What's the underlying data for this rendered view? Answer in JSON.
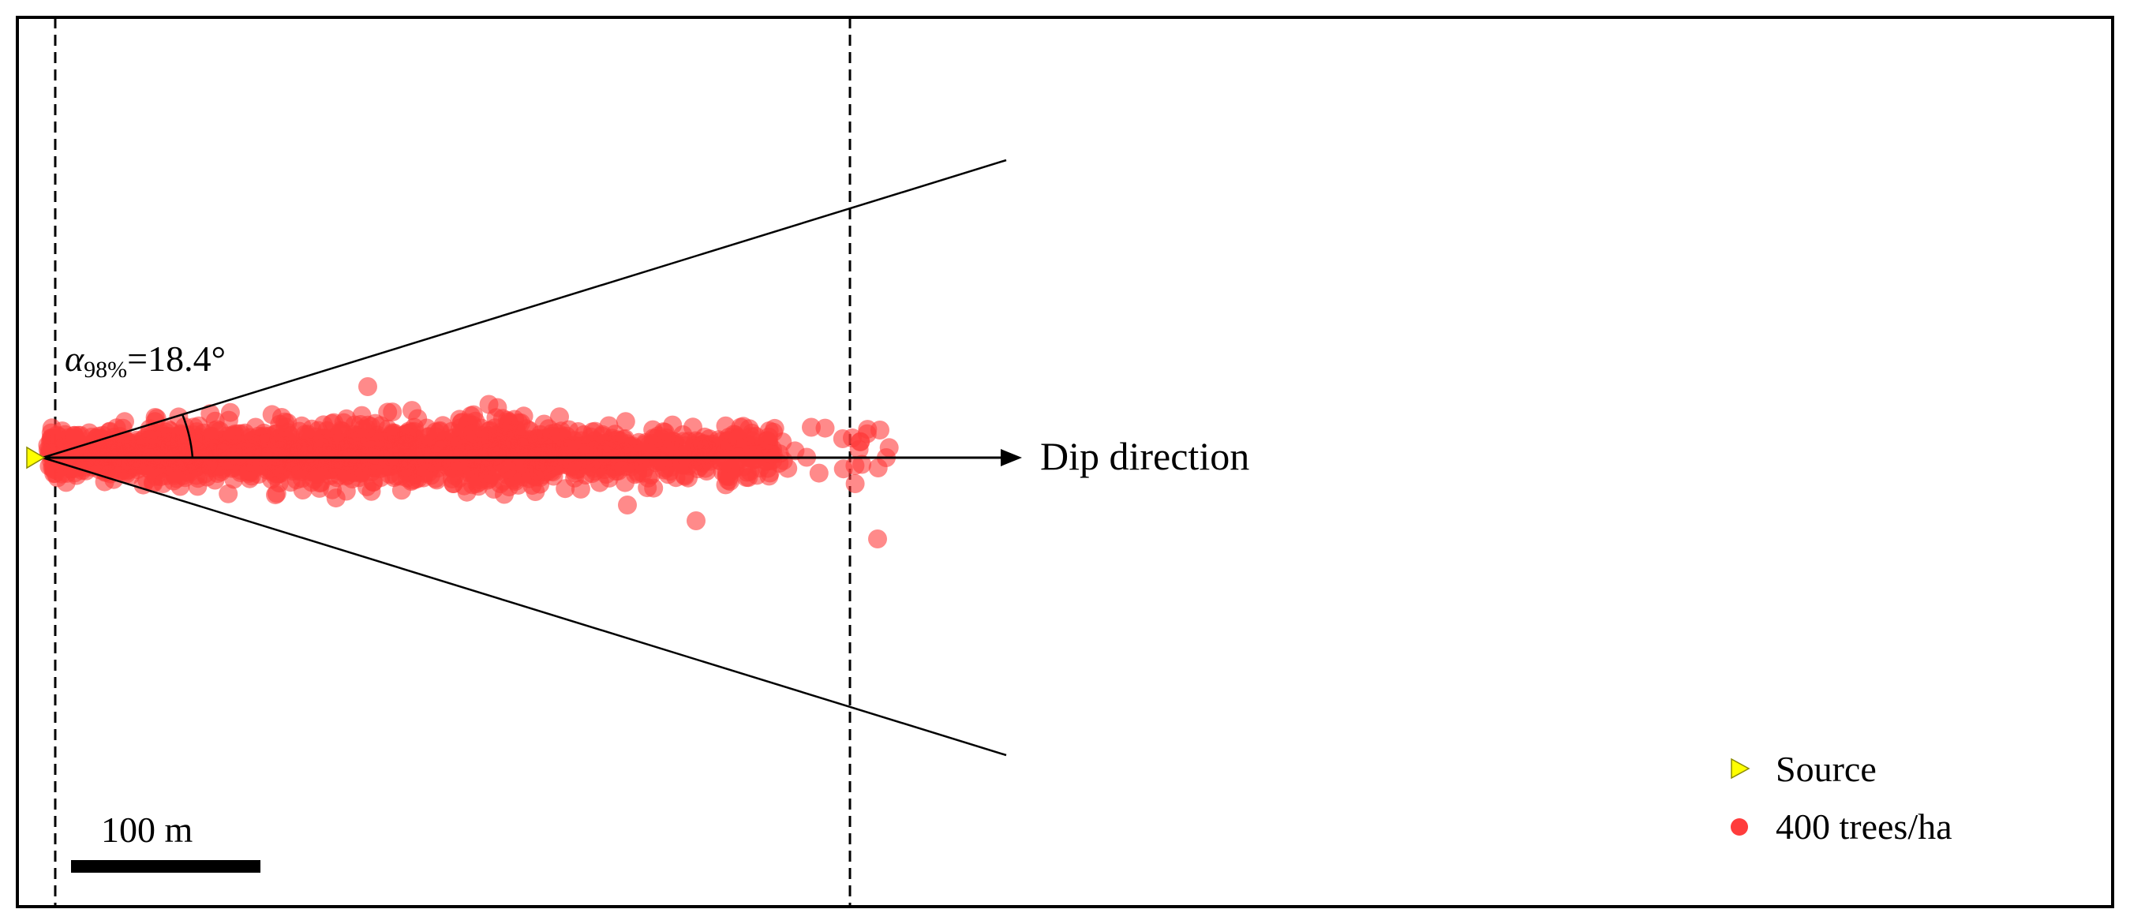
{
  "annotations": {
    "angle_symbol": "α",
    "angle_subscript": "98%",
    "angle_value": "=18.4°",
    "direction_label": "Dip direction",
    "scale_label": "100 m"
  },
  "legend": {
    "source_label": "Source",
    "trees_label": "400 trees/ha"
  },
  "colors": {
    "source": "#ffff00",
    "impacts": "#ff3c3c",
    "frame": "#000000"
  },
  "scene": {
    "cone_half_angle_deg": 18.4,
    "scale_bar_m": 100,
    "tree_density_per_ha": 400
  }
}
